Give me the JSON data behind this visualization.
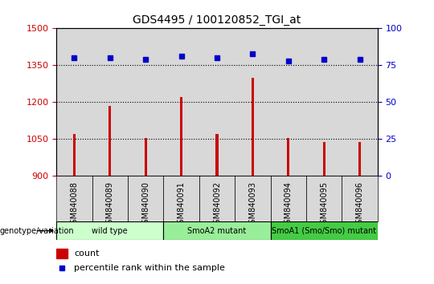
{
  "title": "GDS4495 / 100120852_TGI_at",
  "samples": [
    "GSM840088",
    "GSM840089",
    "GSM840090",
    "GSM840091",
    "GSM840092",
    "GSM840093",
    "GSM840094",
    "GSM840095",
    "GSM840096"
  ],
  "counts": [
    1070,
    1185,
    1055,
    1220,
    1070,
    1300,
    1055,
    1040,
    1040
  ],
  "percentile_ranks": [
    80,
    80,
    79,
    81,
    80,
    83,
    78,
    79,
    79
  ],
  "bar_color": "#cc0000",
  "dot_color": "#0000cc",
  "ylim_left": [
    900,
    1500
  ],
  "ylim_right": [
    0,
    100
  ],
  "yticks_left": [
    900,
    1050,
    1200,
    1350,
    1500
  ],
  "yticks_right": [
    0,
    25,
    50,
    75,
    100
  ],
  "col_bg_color": "#d8d8d8",
  "plot_bg_color": "#ffffff",
  "groups": [
    {
      "label": "wild type",
      "n": 3,
      "color": "#ccffcc"
    },
    {
      "label": "SmoA2 mutant",
      "n": 3,
      "color": "#99ee99"
    },
    {
      "label": "SmoA1 (Smo/Smo) mutant",
      "n": 3,
      "color": "#44cc44"
    }
  ],
  "group_label": "genotype/variation",
  "legend_count_label": "count",
  "legend_pct_label": "percentile rank within the sample",
  "bar_width": 0.07
}
